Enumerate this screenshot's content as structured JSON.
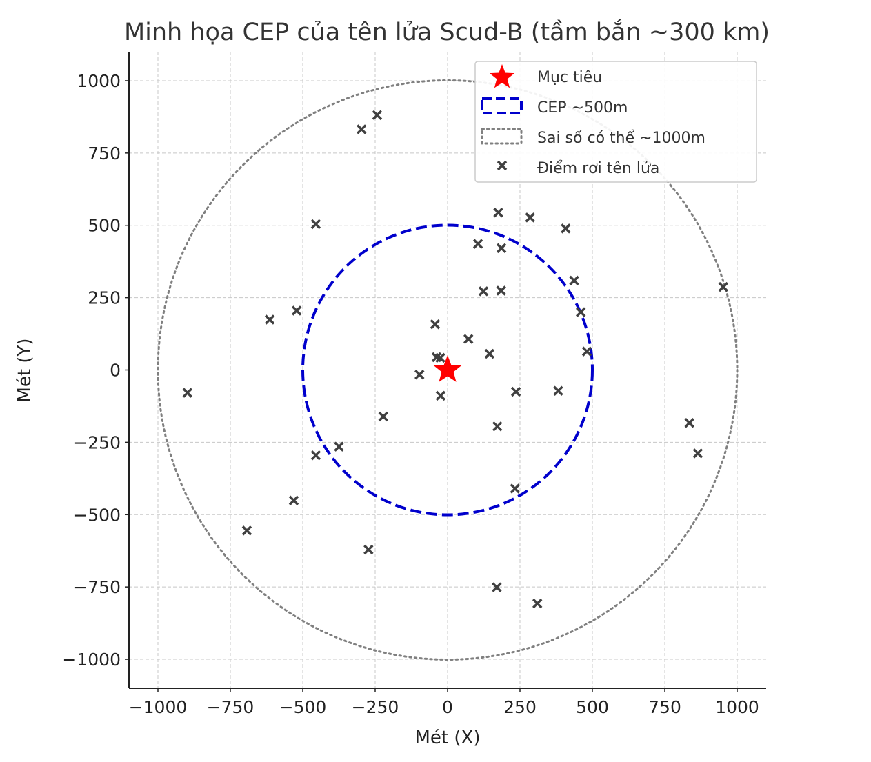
{
  "chart_data": {
    "type": "scatter",
    "title": "Minh họa CEP của tên lửa Scud-B (tầm bắn ~300 km)",
    "xlabel": "Mét (X)",
    "ylabel": "Mét (Y)",
    "xlim": [
      -1100,
      1100
    ],
    "ylim": [
      -1100,
      1100
    ],
    "grid": true,
    "legend_position": "top-right",
    "x_ticks": [
      -1000,
      -750,
      -500,
      -250,
      0,
      250,
      500,
      750,
      1000
    ],
    "y_ticks": [
      -1000,
      -750,
      -500,
      -250,
      0,
      250,
      500,
      750,
      1000
    ],
    "x_tick_labels": [
      "−1000",
      "−750",
      "−500",
      "−250",
      "0",
      "250",
      "500",
      "750",
      "1000"
    ],
    "y_tick_labels": [
      "−1000",
      "−750",
      "−500",
      "−250",
      "0",
      "250",
      "500",
      "750",
      "1000"
    ],
    "target": {
      "label": "Mục tiêu",
      "x": 0,
      "y": 0,
      "color": "#ff0000"
    },
    "cep_circle": {
      "label": "CEP ~500m",
      "radius": 500,
      "color": "#0000cc"
    },
    "error_circle": {
      "label": "Sai số có thể ~1000m",
      "radius": 1000,
      "color": "#808080"
    },
    "impacts": {
      "label": "Điểm rơi tên lửa",
      "color": "#404040",
      "points": [
        [
          -297,
          832
        ],
        [
          -243,
          881
        ],
        [
          -455,
          504
        ],
        [
          175,
          544
        ],
        [
          285,
          527
        ],
        [
          408,
          489
        ],
        [
          105,
          436
        ],
        [
          186,
          421
        ],
        [
          437,
          309
        ],
        [
          952,
          287
        ],
        [
          124,
          272
        ],
        [
          185,
          274
        ],
        [
          -521,
          205
        ],
        [
          -614,
          174
        ],
        [
          460,
          200
        ],
        [
          -43,
          158
        ],
        [
          72,
          107
        ],
        [
          145,
          56
        ],
        [
          481,
          64
        ],
        [
          -38,
          44
        ],
        [
          -25,
          42
        ],
        [
          -97,
          -16
        ],
        [
          -24,
          -89
        ],
        [
          236,
          -75
        ],
        [
          382,
          -72
        ],
        [
          -898,
          -79
        ],
        [
          -222,
          -161
        ],
        [
          172,
          -195
        ],
        [
          835,
          -183
        ],
        [
          864,
          -288
        ],
        [
          -375,
          -265
        ],
        [
          -455,
          -295
        ],
        [
          233,
          -410
        ],
        [
          -531,
          -451
        ],
        [
          -693,
          -555
        ],
        [
          -273,
          -621
        ],
        [
          170,
          -751
        ],
        [
          310,
          -807
        ]
      ]
    }
  }
}
